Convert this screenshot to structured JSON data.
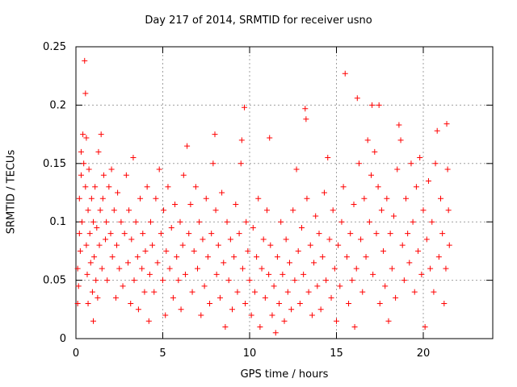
{
  "chart_data": {
    "type": "scatter",
    "title": "Day 217 of 2014, SRMTID for receiver usno",
    "xlabel": "GPS time / hours",
    "ylabel": "SRMTID / TECUs",
    "xlim": [
      0,
      24
    ],
    "ylim": [
      0,
      0.25
    ],
    "xticks": [
      0,
      5,
      10,
      15,
      20
    ],
    "xtick_labels": [
      "0",
      "5",
      "10",
      "15",
      "20"
    ],
    "yticks": [
      0,
      0.05,
      0.1,
      0.15,
      0.2,
      0.25
    ],
    "ytick_labels": [
      "0",
      "0.05",
      "0.1",
      "0.15",
      "0.2",
      "0.25"
    ],
    "grid": true,
    "marker": "+",
    "color": "#ff0000",
    "series": [
      {
        "name": "SRMTID",
        "points": [
          [
            0.1,
            0.03
          ],
          [
            0.1,
            0.06
          ],
          [
            0.15,
            0.045
          ],
          [
            0.2,
            0.09
          ],
          [
            0.2,
            0.12
          ],
          [
            0.25,
            0.075
          ],
          [
            0.3,
            0.14
          ],
          [
            0.3,
            0.16
          ],
          [
            0.35,
            0.1
          ],
          [
            0.4,
            0.175
          ],
          [
            0.45,
            0.15
          ],
          [
            0.5,
            0.238
          ],
          [
            0.55,
            0.21
          ],
          [
            0.55,
            0.13
          ],
          [
            0.6,
            0.08
          ],
          [
            0.6,
            0.172
          ],
          [
            0.65,
            0.055
          ],
          [
            0.7,
            0.11
          ],
          [
            0.7,
            0.03
          ],
          [
            0.75,
            0.145
          ],
          [
            0.8,
            0.09
          ],
          [
            0.85,
            0.065
          ],
          [
            0.9,
            0.12
          ],
          [
            0.95,
            0.04
          ],
          [
            1.0,
            0.1
          ],
          [
            1.0,
            0.015
          ],
          [
            1.05,
            0.07
          ],
          [
            1.1,
            0.13
          ],
          [
            1.15,
            0.05
          ],
          [
            1.2,
            0.095
          ],
          [
            1.25,
            0.035
          ],
          [
            1.3,
            0.16
          ],
          [
            1.35,
            0.08
          ],
          [
            1.4,
            0.11
          ],
          [
            1.45,
            0.175
          ],
          [
            1.5,
            0.06
          ],
          [
            1.55,
            0.12
          ],
          [
            1.6,
            0.14
          ],
          [
            1.7,
            0.085
          ],
          [
            1.75,
            0.1
          ],
          [
            1.8,
            0.05
          ],
          [
            1.9,
            0.13
          ],
          [
            2.0,
            0.09
          ],
          [
            2.05,
            0.145
          ],
          [
            2.1,
            0.07
          ],
          [
            2.2,
            0.11
          ],
          [
            2.3,
            0.035
          ],
          [
            2.35,
            0.08
          ],
          [
            2.4,
            0.125
          ],
          [
            2.5,
            0.06
          ],
          [
            2.6,
            0.1
          ],
          [
            2.7,
            0.045
          ],
          [
            2.8,
            0.09
          ],
          [
            2.9,
            0.14
          ],
          [
            3.0,
            0.065
          ],
          [
            3.05,
            0.11
          ],
          [
            3.15,
            0.03
          ],
          [
            3.2,
            0.085
          ],
          [
            3.3,
            0.155
          ],
          [
            3.35,
            0.05
          ],
          [
            3.45,
            0.1
          ],
          [
            3.55,
            0.07
          ],
          [
            3.6,
            0.025
          ],
          [
            3.7,
            0.12
          ],
          [
            3.8,
            0.06
          ],
          [
            3.85,
            0.09
          ],
          [
            3.95,
            0.04
          ],
          [
            4.0,
            0.075
          ],
          [
            4.1,
            0.13
          ],
          [
            4.2,
            0.015
          ],
          [
            4.25,
            0.055
          ],
          [
            4.3,
            0.1
          ],
          [
            4.4,
            0.08
          ],
          [
            4.5,
            0.04
          ],
          [
            4.6,
            0.12
          ],
          [
            4.7,
            0.065
          ],
          [
            4.8,
            0.145
          ],
          [
            4.9,
            0.09
          ],
          [
            5.0,
            0.05
          ],
          [
            5.05,
            0.11
          ],
          [
            5.15,
            0.02
          ],
          [
            5.2,
            0.075
          ],
          [
            5.3,
            0.13
          ],
          [
            5.4,
            0.06
          ],
          [
            5.5,
            0.095
          ],
          [
            5.6,
            0.035
          ],
          [
            5.7,
            0.115
          ],
          [
            5.8,
            0.07
          ],
          [
            5.9,
            0.05
          ],
          [
            6.0,
            0.1
          ],
          [
            6.05,
            0.025
          ],
          [
            6.15,
            0.08
          ],
          [
            6.2,
            0.14
          ],
          [
            6.3,
            0.055
          ],
          [
            6.4,
            0.165
          ],
          [
            6.5,
            0.09
          ],
          [
            6.6,
            0.115
          ],
          [
            6.7,
            0.04
          ],
          [
            6.8,
            0.075
          ],
          [
            6.9,
            0.13
          ],
          [
            7.0,
            0.06
          ],
          [
            7.1,
            0.1
          ],
          [
            7.2,
            0.02
          ],
          [
            7.3,
            0.085
          ],
          [
            7.4,
            0.045
          ],
          [
            7.5,
            0.12
          ],
          [
            7.6,
            0.07
          ],
          [
            7.7,
            0.03
          ],
          [
            7.8,
            0.09
          ],
          [
            7.9,
            0.15
          ],
          [
            8.0,
            0.175
          ],
          [
            8.05,
            0.11
          ],
          [
            8.1,
            0.055
          ],
          [
            8.2,
            0.08
          ],
          [
            8.3,
            0.035
          ],
          [
            8.4,
            0.125
          ],
          [
            8.5,
            0.065
          ],
          [
            8.6,
            0.01
          ],
          [
            8.7,
            0.1
          ],
          [
            8.8,
            0.05
          ],
          [
            8.9,
            0.085
          ],
          [
            9.0,
            0.025
          ],
          [
            9.1,
            0.07
          ],
          [
            9.2,
            0.115
          ],
          [
            9.3,
            0.04
          ],
          [
            9.4,
            0.09
          ],
          [
            9.5,
            0.15
          ],
          [
            9.55,
            0.17
          ],
          [
            9.6,
            0.06
          ],
          [
            9.7,
            0.198
          ],
          [
            9.75,
            0.03
          ],
          [
            9.8,
            0.1
          ],
          [
            9.9,
            0.075
          ],
          [
            10.0,
            0.05
          ],
          [
            10.1,
            0.02
          ],
          [
            10.2,
            0.095
          ],
          [
            10.3,
            0.04
          ],
          [
            10.4,
            0.07
          ],
          [
            10.5,
            0.12
          ],
          [
            10.6,
            0.01
          ],
          [
            10.7,
            0.06
          ],
          [
            10.8,
            0.085
          ],
          [
            10.9,
            0.035
          ],
          [
            11.0,
            0.11
          ],
          [
            11.1,
            0.055
          ],
          [
            11.15,
            0.172
          ],
          [
            11.2,
            0.08
          ],
          [
            11.3,
            0.02
          ],
          [
            11.4,
            0.045
          ],
          [
            11.5,
            0.005
          ],
          [
            11.6,
            0.07
          ],
          [
            11.7,
            0.03
          ],
          [
            11.8,
            0.1
          ],
          [
            11.9,
            0.055
          ],
          [
            12.0,
            0.015
          ],
          [
            12.1,
            0.085
          ],
          [
            12.2,
            0.04
          ],
          [
            12.3,
            0.065
          ],
          [
            12.4,
            0.025
          ],
          [
            12.5,
            0.11
          ],
          [
            12.6,
            0.05
          ],
          [
            12.7,
            0.145
          ],
          [
            12.8,
            0.075
          ],
          [
            12.9,
            0.03
          ],
          [
            13.0,
            0.095
          ],
          [
            13.1,
            0.055
          ],
          [
            13.2,
            0.197
          ],
          [
            13.25,
            0.188
          ],
          [
            13.3,
            0.12
          ],
          [
            13.4,
            0.04
          ],
          [
            13.5,
            0.08
          ],
          [
            13.6,
            0.02
          ],
          [
            13.7,
            0.065
          ],
          [
            13.8,
            0.105
          ],
          [
            13.9,
            0.045
          ],
          [
            14.0,
            0.09
          ],
          [
            14.1,
            0.025
          ],
          [
            14.2,
            0.07
          ],
          [
            14.3,
            0.125
          ],
          [
            14.4,
            0.05
          ],
          [
            14.5,
            0.155
          ],
          [
            14.6,
            0.085
          ],
          [
            14.7,
            0.035
          ],
          [
            14.8,
            0.11
          ],
          [
            14.9,
            0.06
          ],
          [
            15.0,
            0.015
          ],
          [
            15.1,
            0.08
          ],
          [
            15.2,
            0.045
          ],
          [
            15.3,
            0.1
          ],
          [
            15.4,
            0.13
          ],
          [
            15.5,
            0.227
          ],
          [
            15.6,
            0.07
          ],
          [
            15.7,
            0.03
          ],
          [
            15.8,
            0.09
          ],
          [
            15.9,
            0.05
          ],
          [
            16.0,
            0.115
          ],
          [
            16.05,
            0.01
          ],
          [
            16.15,
            0.06
          ],
          [
            16.2,
            0.206
          ],
          [
            16.3,
            0.15
          ],
          [
            16.4,
            0.085
          ],
          [
            16.5,
            0.04
          ],
          [
            16.6,
            0.12
          ],
          [
            16.7,
            0.07
          ],
          [
            16.8,
            0.17
          ],
          [
            16.9,
            0.1
          ],
          [
            17.0,
            0.14
          ],
          [
            17.05,
            0.2
          ],
          [
            17.1,
            0.055
          ],
          [
            17.2,
            0.16
          ],
          [
            17.3,
            0.09
          ],
          [
            17.4,
            0.13
          ],
          [
            17.45,
            0.2
          ],
          [
            17.5,
            0.03
          ],
          [
            17.6,
            0.11
          ],
          [
            17.7,
            0.075
          ],
          [
            17.8,
            0.045
          ],
          [
            17.9,
            0.12
          ],
          [
            18.0,
            0.015
          ],
          [
            18.1,
            0.09
          ],
          [
            18.2,
            0.06
          ],
          [
            18.3,
            0.105
          ],
          [
            18.4,
            0.035
          ],
          [
            18.5,
            0.145
          ],
          [
            18.6,
            0.183
          ],
          [
            18.7,
            0.17
          ],
          [
            18.8,
            0.08
          ],
          [
            18.9,
            0.05
          ],
          [
            19.0,
            0.12
          ],
          [
            19.1,
            0.09
          ],
          [
            19.2,
            0.065
          ],
          [
            19.3,
            0.15
          ],
          [
            19.4,
            0.1
          ],
          [
            19.5,
            0.04
          ],
          [
            19.6,
            0.13
          ],
          [
            19.7,
            0.075
          ],
          [
            19.8,
            0.155
          ],
          [
            19.9,
            0.055
          ],
          [
            20.0,
            0.11
          ],
          [
            20.1,
            0.01
          ],
          [
            20.2,
            0.085
          ],
          [
            20.3,
            0.135
          ],
          [
            20.4,
            0.06
          ],
          [
            20.5,
            0.1
          ],
          [
            20.6,
            0.04
          ],
          [
            20.7,
            0.15
          ],
          [
            20.8,
            0.178
          ],
          [
            20.9,
            0.07
          ],
          [
            21.0,
            0.12
          ],
          [
            21.1,
            0.09
          ],
          [
            21.2,
            0.03
          ],
          [
            21.3,
            0.06
          ],
          [
            21.35,
            0.184
          ],
          [
            21.4,
            0.145
          ],
          [
            21.45,
            0.11
          ],
          [
            21.5,
            0.08
          ]
        ]
      }
    ]
  }
}
